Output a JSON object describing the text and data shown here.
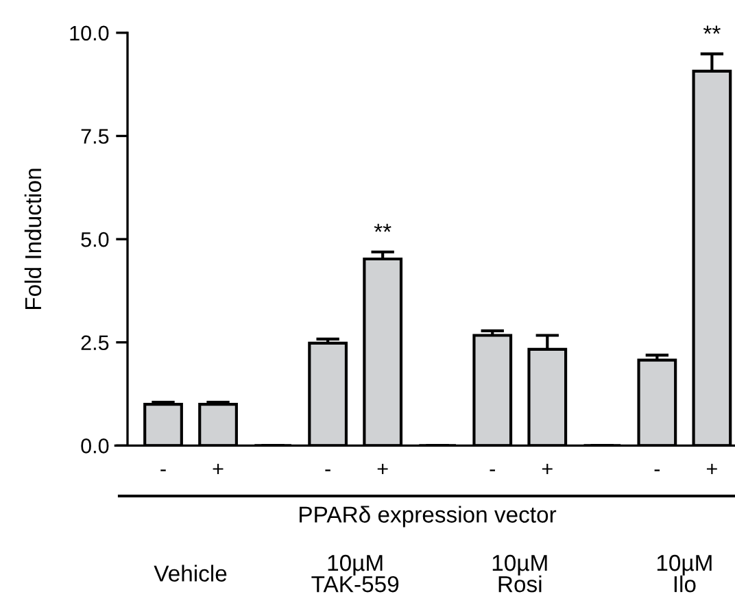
{
  "chart_data": {
    "type": "bar",
    "ylabel": "Fold Induction",
    "xlabel": "PPARδ expression vector",
    "categories": [
      "-",
      "+",
      null,
      "-",
      "+",
      null,
      "-",
      "+",
      null,
      "-",
      "+"
    ],
    "values": [
      1.0,
      1.0,
      0,
      2.48,
      4.52,
      0,
      2.67,
      2.33,
      0,
      2.07,
      9.07
    ],
    "errors": [
      0.05,
      0.05,
      null,
      0.1,
      0.17,
      null,
      0.11,
      0.34,
      null,
      0.12,
      0.42
    ],
    "value_labels": [
      null,
      null,
      null,
      null,
      "**",
      null,
      null,
      null,
      null,
      null,
      "**"
    ],
    "colors": [
      "#d0d2d4",
      "#d0d2d4",
      "#000000",
      "#d0d2d4",
      "#d0d2d4",
      "#000000",
      "#d0d2d4",
      "#d0d2d4",
      "#000000",
      "#d0d2d4",
      "#d0d2d4"
    ],
    "ylim": [
      0,
      10
    ],
    "yticks": [
      {
        "value": 0,
        "label": "0.0"
      },
      {
        "value": 2.5,
        "label": "2.5"
      },
      {
        "value": 5,
        "label": "5.0"
      },
      {
        "value": 7.5,
        "label": "7.5"
      },
      {
        "value": 10,
        "label": "10.0"
      }
    ],
    "annotations": [
      "Vehicle",
      "10µM\nTAK-559",
      "10µM\nRosi",
      "10µM\nIlo"
    ]
  }
}
